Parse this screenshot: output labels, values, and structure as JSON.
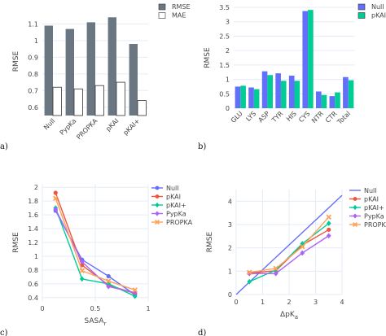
{
  "panel_labels": [
    "a)",
    "b)",
    "c)",
    "d)"
  ],
  "chart_data": [
    {
      "type": "bar",
      "panel": "a)",
      "ylabel": "RMSE",
      "ylim": [
        0.55,
        1.2
      ],
      "yticks": [
        0.6,
        0.7,
        0.8,
        0.9,
        1.0,
        1.1
      ],
      "grid": true,
      "legend": "top-right",
      "categories": [
        "Null",
        "PypKa",
        "PROPKA",
        "pKAI",
        "pKAI+"
      ],
      "series": [
        {
          "name": "RMSE",
          "color": "#6b7683",
          "values": [
            1.09,
            1.07,
            1.11,
            1.14,
            0.98
          ]
        },
        {
          "name": "MAE",
          "color": "#ffffff",
          "values": [
            0.72,
            0.71,
            0.73,
            0.75,
            0.64
          ]
        }
      ]
    },
    {
      "type": "bar",
      "panel": "b)",
      "ylabel": "RMSE",
      "ylim": [
        0,
        3.5
      ],
      "yticks": [
        0,
        0.5,
        1,
        1.5,
        2,
        2.5,
        3,
        3.5
      ],
      "grid": true,
      "legend": "top-right",
      "categories": [
        "GLU",
        "LYS",
        "ASP",
        "TYR",
        "HIS",
        "CYS",
        "NTR",
        "CTR",
        "Total"
      ],
      "series": [
        {
          "name": "Null",
          "color": "#636efa",
          "values": [
            0.75,
            0.72,
            1.28,
            1.21,
            1.13,
            3.37,
            0.58,
            0.42,
            1.08
          ]
        },
        {
          "name": "pKAI+",
          "color": "#00cc96",
          "values": [
            0.78,
            0.66,
            1.15,
            0.95,
            0.95,
            3.41,
            0.46,
            0.55,
            0.97
          ]
        }
      ]
    },
    {
      "type": "line",
      "panel": "c)",
      "xlabel": "SASA",
      "xlabel_sub": "r",
      "ylabel": "RMSE",
      "xlim": [
        0,
        1
      ],
      "ylim": [
        0.35,
        2.05
      ],
      "xticks": [
        0,
        0.5,
        1
      ],
      "yticks": [
        0.4,
        0.6,
        0.8,
        1.0,
        1.2,
        1.4,
        1.6,
        1.8,
        2.0
      ],
      "grid": true,
      "legend": "top-right",
      "x": [
        0.125,
        0.375,
        0.625,
        0.875
      ],
      "series": [
        {
          "name": "Null",
          "color": "#636efa",
          "marker": "circle",
          "values": [
            1.66,
            0.95,
            0.71,
            0.44
          ]
        },
        {
          "name": "pKAI",
          "color": "#ef553b",
          "marker": "circle",
          "values": [
            1.92,
            0.87,
            0.58,
            0.46
          ]
        },
        {
          "name": "pKAI+",
          "color": "#00cc96",
          "marker": "diamond",
          "values": [
            1.7,
            0.67,
            0.6,
            0.42
          ]
        },
        {
          "name": "PypKa",
          "color": "#ab63fa",
          "marker": "diamond",
          "values": [
            1.68,
            0.92,
            0.56,
            0.47
          ]
        },
        {
          "name": "PROPKA",
          "color": "#ffa15a",
          "marker": "x",
          "values": [
            1.84,
            0.79,
            0.64,
            0.51
          ]
        }
      ]
    },
    {
      "type": "line",
      "panel": "d)",
      "xlabel": "ΔpK",
      "xlabel_sub": "a",
      "ylabel": "RMSE",
      "xlim": [
        0,
        4
      ],
      "ylim": [
        0,
        4.5
      ],
      "xticks": [
        0,
        1,
        2,
        3,
        4
      ],
      "yticks": [
        0,
        1,
        2,
        3,
        4
      ],
      "grid": true,
      "legend": "top-right",
      "x": [
        0.5,
        1.5,
        2.5,
        3.5
      ],
      "reference_line": {
        "name": "Null",
        "color": "#636efa",
        "x": [
          0,
          4
        ],
        "y": [
          0,
          4.25
        ]
      },
      "series": [
        {
          "name": "pKAI",
          "color": "#ef553b",
          "marker": "circle",
          "values": [
            0.92,
            1.02,
            2.12,
            2.78
          ]
        },
        {
          "name": "pKAI+",
          "color": "#00cc96",
          "marker": "diamond",
          "values": [
            0.55,
            1.05,
            2.18,
            3.05
          ]
        },
        {
          "name": "PypKa",
          "color": "#ab63fa",
          "marker": "diamond",
          "values": [
            0.9,
            0.9,
            1.78,
            2.52
          ]
        },
        {
          "name": "PROPKA",
          "color": "#ffa15a",
          "marker": "x",
          "values": [
            0.95,
            1.12,
            2.05,
            3.32
          ]
        }
      ]
    }
  ]
}
